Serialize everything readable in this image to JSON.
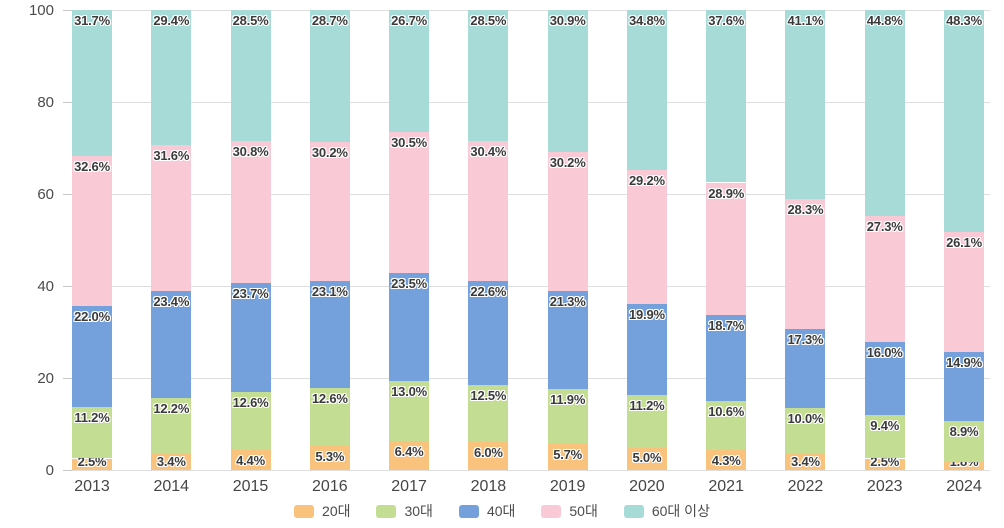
{
  "chart_data": {
    "type": "bar",
    "stacked": true,
    "title": "",
    "xlabel": "",
    "ylabel": "",
    "categories": [
      "2013",
      "2014",
      "2015",
      "2016",
      "2017",
      "2018",
      "2019",
      "2020",
      "2021",
      "2022",
      "2023",
      "2024"
    ],
    "series": [
      {
        "name": "20대",
        "color": "#f9c37d",
        "values": [
          2.5,
          3.4,
          4.4,
          5.3,
          6.4,
          6.0,
          5.7,
          5.0,
          4.3,
          3.4,
          2.5,
          1.8
        ]
      },
      {
        "name": "30대",
        "color": "#c3de92",
        "values": [
          11.2,
          12.2,
          12.6,
          12.6,
          13.0,
          12.5,
          11.9,
          11.2,
          10.6,
          10.0,
          9.4,
          8.9
        ]
      },
      {
        "name": "40대",
        "color": "#74a0db",
        "values": [
          22.0,
          23.4,
          23.7,
          23.1,
          23.5,
          22.6,
          21.3,
          19.9,
          18.7,
          17.3,
          16.0,
          14.9
        ]
      },
      {
        "name": "50대",
        "color": "#f9c9d5",
        "values": [
          32.6,
          31.6,
          30.8,
          30.2,
          30.5,
          30.4,
          30.2,
          29.2,
          28.9,
          28.3,
          27.3,
          26.1
        ]
      },
      {
        "name": "60대 이상",
        "color": "#a7dbd8",
        "values": [
          31.7,
          29.4,
          28.5,
          28.7,
          26.7,
          28.5,
          30.9,
          34.8,
          37.6,
          41.1,
          44.8,
          48.3
        ]
      }
    ],
    "value_suffix": "%",
    "ylim": [
      0,
      100
    ],
    "yticks": [
      0,
      20,
      40,
      60,
      80,
      100
    ],
    "grid": true,
    "legend_position": "bottom",
    "style": {
      "background": "#ffffff",
      "grid_color": "#dedede",
      "tick_color": "#c8c8c8",
      "axis_text_color": "#4b4b4b",
      "data_label_color": "#3a3a3a",
      "data_label_outline": "#ffffff"
    }
  }
}
